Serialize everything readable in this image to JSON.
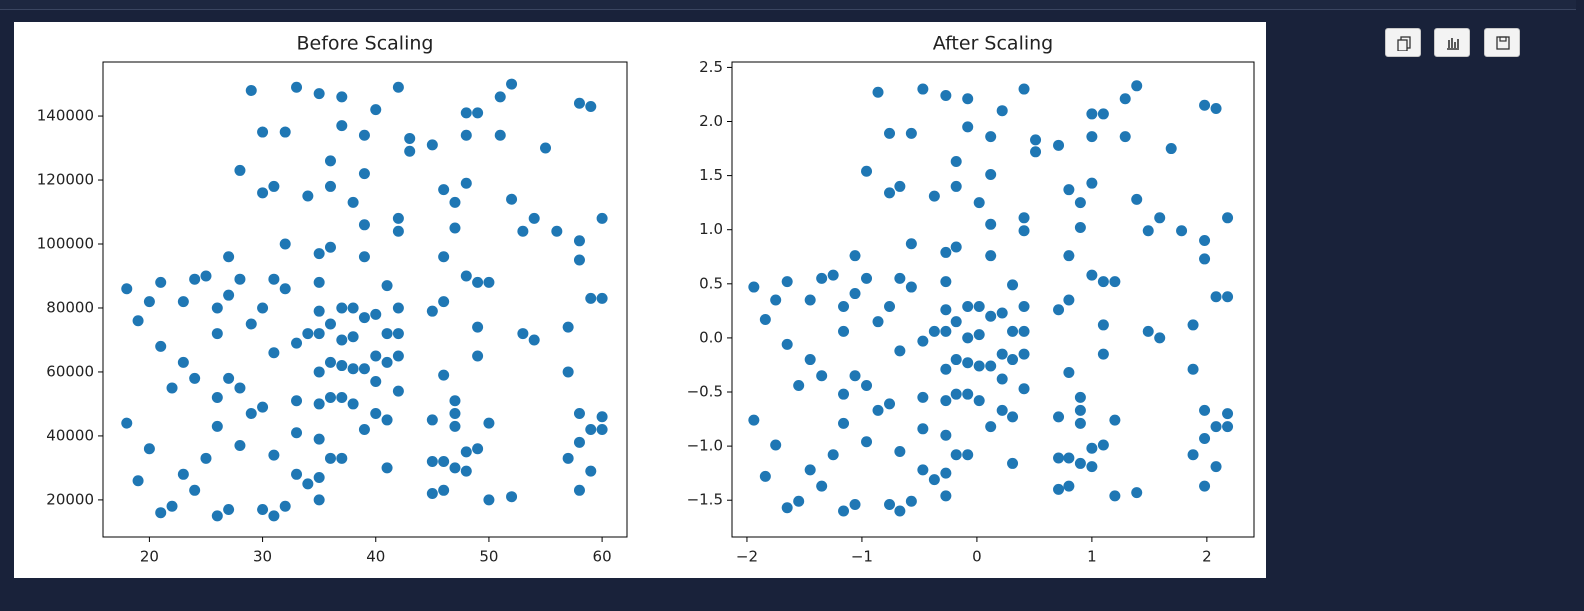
{
  "chart_data": [
    {
      "type": "scatter",
      "title": "Before Scaling",
      "color": "#1f77b4",
      "xlim": [
        15.9,
        62.2
      ],
      "ylim": [
        8400,
        156900
      ],
      "xticks": [
        20,
        30,
        40,
        50,
        60
      ],
      "yticks": [
        20000,
        40000,
        60000,
        80000,
        100000,
        120000,
        140000
      ],
      "x": [
        18,
        18,
        19,
        20,
        20,
        21,
        21,
        21,
        19,
        22,
        22,
        23,
        23,
        23,
        24,
        24,
        24,
        25,
        25,
        26,
        26,
        26,
        26,
        26,
        27,
        27,
        27,
        27,
        28,
        28,
        28,
        28,
        29,
        29,
        29,
        30,
        30,
        30,
        30,
        30,
        31,
        31,
        31,
        31,
        31,
        32,
        32,
        32,
        32,
        33,
        33,
        33,
        33,
        33,
        34,
        34,
        34,
        35,
        35,
        35,
        35,
        35,
        35,
        35,
        35,
        35,
        35,
        36,
        36,
        36,
        36,
        36,
        36,
        36,
        37,
        37,
        37,
        37,
        37,
        37,
        37,
        38,
        38,
        38,
        38,
        38,
        39,
        39,
        39,
        39,
        39,
        39,
        39,
        40,
        40,
        40,
        40,
        40,
        41,
        41,
        41,
        41,
        41,
        42,
        42,
        42,
        42,
        42,
        42,
        42,
        43,
        43,
        45,
        45,
        45,
        45,
        45,
        46,
        46,
        46,
        46,
        46,
        46,
        47,
        47,
        47,
        47,
        47,
        47,
        48,
        48,
        48,
        48,
        48,
        48,
        49,
        49,
        49,
        49,
        49,
        50,
        50,
        50,
        51,
        51,
        52,
        52,
        52,
        53,
        53,
        54,
        54,
        55,
        56,
        57,
        57,
        57,
        58,
        58,
        58,
        58,
        58,
        58,
        59,
        59,
        59,
        59,
        60,
        60,
        60,
        60
      ],
      "values": [
        86000,
        44000,
        76000,
        82000,
        36000,
        88000,
        68000,
        16000,
        26000,
        55000,
        18000,
        82000,
        63000,
        28000,
        89000,
        58000,
        23000,
        90000,
        33000,
        80000,
        72000,
        52000,
        43000,
        15000,
        96000,
        84000,
        58000,
        17000,
        123000,
        89000,
        55000,
        37000,
        148000,
        75000,
        47000,
        135000,
        116000,
        80000,
        49000,
        17000,
        118000,
        89000,
        66000,
        34000,
        15000,
        135000,
        100000,
        86000,
        18000,
        149000,
        69000,
        51000,
        41000,
        28000,
        115000,
        72000,
        25000,
        147000,
        97000,
        88000,
        79000,
        72000,
        60000,
        50000,
        39000,
        27000,
        20000,
        126000,
        118000,
        99000,
        75000,
        63000,
        52000,
        33000,
        146000,
        137000,
        80000,
        70000,
        62000,
        52000,
        33000,
        113000,
        80000,
        71000,
        61000,
        50000,
        134000,
        122000,
        106000,
        96000,
        77000,
        61000,
        42000,
        142000,
        78000,
        65000,
        57000,
        47000,
        87000,
        72000,
        63000,
        45000,
        30000,
        149000,
        108000,
        104000,
        80000,
        72000,
        65000,
        54000,
        133000,
        129000,
        131000,
        79000,
        45000,
        32000,
        22000,
        117000,
        96000,
        82000,
        59000,
        32000,
        23000,
        113000,
        105000,
        51000,
        47000,
        43000,
        30000,
        141000,
        134000,
        119000,
        90000,
        35000,
        29000,
        141000,
        88000,
        74000,
        65000,
        36000,
        88000,
        44000,
        20000,
        146000,
        134000,
        150000,
        114000,
        21000,
        104000,
        72000,
        108000,
        70000,
        130000,
        104000,
        74000,
        60000,
        33000,
        144000,
        101000,
        95000,
        47000,
        38000,
        23000,
        143000,
        83000,
        42000,
        29000,
        108000,
        83000,
        46000,
        42000
      ]
    },
    {
      "type": "scatter",
      "title": "After Scaling",
      "color": "#1f77b4",
      "xlim": [
        -2.13,
        2.41
      ],
      "ylim": [
        -1.84,
        2.55
      ],
      "xticks": [
        {
          "value": -2,
          "label": "−2"
        },
        {
          "value": -1,
          "label": "−1"
        },
        0,
        1,
        2
      ],
      "yticks": [
        {
          "value": -1.5,
          "label": "−1.5"
        },
        {
          "value": -1.0,
          "label": "−1.0"
        },
        {
          "value": -0.5,
          "label": "−0.5"
        },
        {
          "value": 0,
          "label": "0.0"
        },
        0.5,
        {
          "value": 1,
          "label": "1.0"
        },
        1.5,
        {
          "value": 2,
          "label": "2.0"
        },
        2.5
      ],
      "x": [
        -1.94,
        -1.94,
        -1.84,
        -1.75,
        -1.75,
        -1.65,
        -1.65,
        -1.65,
        -1.84,
        -1.55,
        -1.55,
        -1.45,
        -1.45,
        -1.45,
        -1.35,
        -1.35,
        -1.35,
        -1.25,
        -1.25,
        -1.16,
        -1.16,
        -1.16,
        -1.16,
        -1.16,
        -1.06,
        -1.06,
        -1.06,
        -1.06,
        -0.96,
        -0.96,
        -0.96,
        -0.96,
        -0.86,
        -0.86,
        -0.86,
        -0.76,
        -0.76,
        -0.76,
        -0.76,
        -0.76,
        -0.67,
        -0.67,
        -0.67,
        -0.67,
        -0.67,
        -0.57,
        -0.57,
        -0.57,
        -0.57,
        -0.47,
        -0.47,
        -0.47,
        -0.47,
        -0.47,
        -0.37,
        -0.37,
        -0.37,
        -0.27,
        -0.27,
        -0.27,
        -0.27,
        -0.27,
        -0.27,
        -0.27,
        -0.27,
        -0.27,
        -0.27,
        -0.18,
        -0.18,
        -0.18,
        -0.18,
        -0.18,
        -0.18,
        -0.18,
        -0.08,
        -0.08,
        -0.08,
        -0.08,
        -0.08,
        -0.08,
        -0.08,
        0.02,
        0.02,
        0.02,
        0.02,
        0.02,
        0.12,
        0.12,
        0.12,
        0.12,
        0.12,
        0.12,
        0.12,
        0.22,
        0.22,
        0.22,
        0.22,
        0.22,
        0.31,
        0.31,
        0.31,
        0.31,
        0.31,
        0.41,
        0.41,
        0.41,
        0.41,
        0.41,
        0.41,
        0.41,
        0.51,
        0.51,
        0.71,
        0.71,
        0.71,
        0.71,
        0.71,
        0.8,
        0.8,
        0.8,
        0.8,
        0.8,
        0.8,
        0.9,
        0.9,
        0.9,
        0.9,
        0.9,
        0.9,
        1.0,
        1.0,
        1.0,
        1.0,
        1.0,
        1.0,
        1.1,
        1.1,
        1.1,
        1.1,
        1.1,
        1.2,
        1.2,
        1.2,
        1.29,
        1.29,
        1.39,
        1.39,
        1.39,
        1.49,
        1.49,
        1.59,
        1.59,
        1.69,
        1.78,
        1.88,
        1.88,
        1.88,
        1.98,
        1.98,
        1.98,
        1.98,
        1.98,
        1.98,
        2.08,
        2.08,
        2.08,
        2.08,
        2.18,
        2.18,
        2.18,
        2.18
      ],
      "values": [
        0.47,
        -0.76,
        0.17,
        0.35,
        -0.99,
        0.52,
        -0.06,
        -1.57,
        -1.28,
        -0.44,
        -1.51,
        0.35,
        -0.2,
        -1.22,
        0.55,
        -0.35,
        -1.37,
        0.58,
        -1.08,
        0.29,
        0.06,
        -0.52,
        -0.79,
        -1.6,
        0.76,
        0.41,
        -0.35,
        -1.54,
        1.54,
        0.55,
        -0.44,
        -0.96,
        2.27,
        0.15,
        -0.67,
        1.89,
        1.34,
        0.29,
        -0.61,
        -1.54,
        1.4,
        0.55,
        -0.12,
        -1.05,
        -1.6,
        1.89,
        0.87,
        0.47,
        -1.51,
        2.3,
        -0.03,
        -0.55,
        -0.84,
        -1.22,
        1.31,
        0.06,
        -1.31,
        2.24,
        0.79,
        0.52,
        0.26,
        0.06,
        -0.29,
        -0.58,
        -0.9,
        -1.25,
        -1.46,
        1.63,
        1.4,
        0.84,
        0.15,
        -0.2,
        -0.52,
        -1.08,
        2.21,
        1.95,
        0.29,
        0,
        -0.23,
        -0.52,
        -1.08,
        1.25,
        0.29,
        0.03,
        -0.26,
        -0.58,
        1.86,
        1.51,
        1.05,
        0.76,
        0.2,
        -0.26,
        -0.82,
        2.1,
        0.23,
        -0.15,
        -0.38,
        -0.67,
        0.49,
        0.06,
        -0.2,
        -0.73,
        -1.16,
        2.3,
        1.11,
        0.99,
        0.29,
        0.06,
        -0.15,
        -0.47,
        1.83,
        1.72,
        1.78,
        0.26,
        -0.73,
        -1.11,
        -1.4,
        1.37,
        0.76,
        0.35,
        -0.32,
        -1.11,
        -1.37,
        1.25,
        1.02,
        -0.55,
        -0.67,
        -0.79,
        -1.16,
        2.07,
        1.86,
        1.43,
        0.58,
        -1.02,
        -1.19,
        2.07,
        0.52,
        0.12,
        -0.15,
        -0.99,
        0.52,
        -0.76,
        -1.46,
        2.21,
        1.86,
        2.33,
        1.28,
        -1.43,
        0.99,
        0.06,
        1.11,
        0,
        1.75,
        0.99,
        0.12,
        -0.29,
        -1.08,
        2.15,
        0.9,
        0.73,
        -0.67,
        -0.93,
        -1.37,
        2.12,
        0.38,
        -0.82,
        -1.19,
        1.11,
        0.38,
        -0.7,
        -0.82
      ]
    }
  ]
}
